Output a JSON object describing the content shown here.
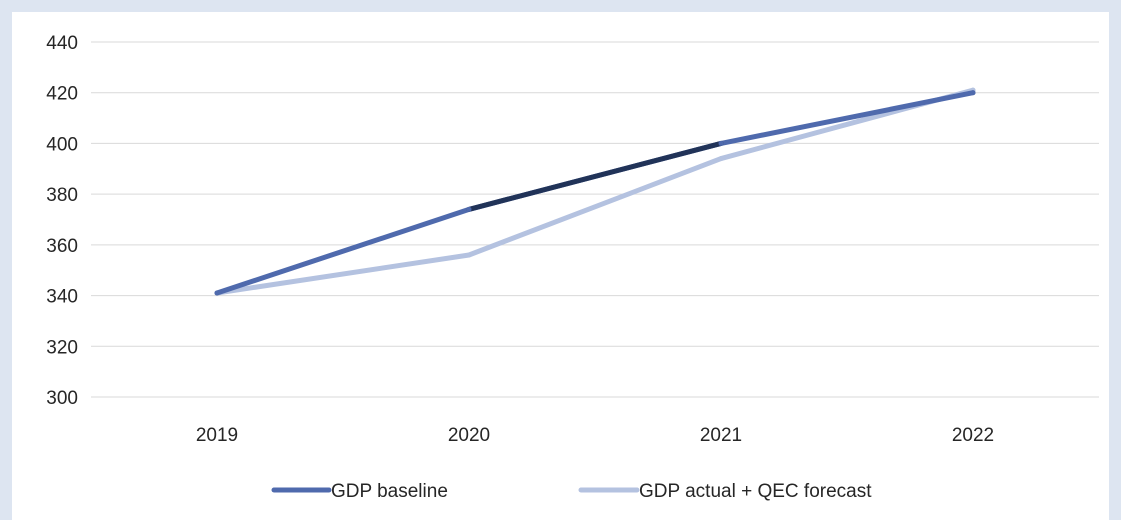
{
  "colors": {
    "background": "#dde5f1",
    "panel": "#ffffff",
    "gridline": "#d9d9d9",
    "baseline_series": "#4f6aad",
    "baseline_series_mid_segment": "#213358",
    "actual_series": "#b4c2e0",
    "text": "#262626"
  },
  "chart_data": {
    "type": "line",
    "categories": [
      "2019",
      "2020",
      "2021",
      "2022"
    ],
    "series": [
      {
        "name": "GDP baseline",
        "values": [
          341,
          374,
          400,
          420
        ],
        "color": "#4f6aad"
      },
      {
        "name": "GDP actual + QEC forecast",
        "values": [
          341,
          356,
          394,
          421
        ],
        "color": "#b4c2e0"
      }
    ],
    "ylim": [
      300,
      440
    ],
    "yticks": [
      300,
      320,
      340,
      360,
      380,
      400,
      420,
      440
    ],
    "title": "",
    "xlabel": "",
    "ylabel": "",
    "grid": true,
    "legend_position": "bottom"
  }
}
